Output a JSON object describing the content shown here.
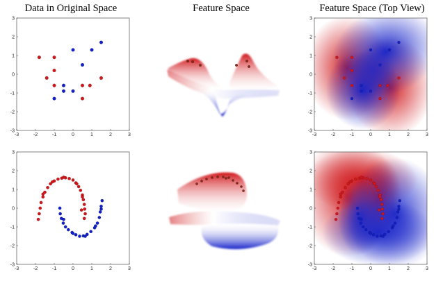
{
  "titles": {
    "original": "Data in Original Space",
    "feature": "Feature Space",
    "topview": "Feature Space (Top View)"
  },
  "colors": {
    "class_a": "#d0171b",
    "class_b": "#1320c8",
    "background": "#ffffff"
  },
  "chart_data": [
    {
      "type": "scatter",
      "title": "Data in Original Space",
      "xlim": [
        -3,
        3
      ],
      "ylim": [
        -3,
        3
      ],
      "xticks": [
        "-3",
        "-2",
        "-1",
        "0",
        "1",
        "2",
        "3"
      ],
      "yticks": [
        "-3",
        "-2",
        "-1",
        "0",
        "1",
        "2",
        "3"
      ],
      "grid": false,
      "series": [
        {
          "color": "#d0171b",
          "points": [
            [
              -1.8,
              0.9
            ],
            [
              -1.0,
              0.9
            ],
            [
              -1.0,
              0.2
            ],
            [
              -1.4,
              -0.2
            ],
            [
              -1.0,
              -0.6
            ],
            [
              0.5,
              -0.6
            ],
            [
              0.9,
              -0.6
            ],
            [
              0.5,
              -1.3
            ],
            [
              1.5,
              -0.2
            ]
          ]
        },
        {
          "color": "#1320c8",
          "points": [
            [
              0.0,
              1.3
            ],
            [
              1.0,
              1.3
            ],
            [
              1.5,
              1.7
            ],
            [
              0.5,
              0.5
            ],
            [
              -0.5,
              -0.6
            ],
            [
              -0.5,
              -0.9
            ],
            [
              0.0,
              -0.9
            ],
            [
              -1.0,
              -1.3
            ]
          ]
        }
      ]
    },
    {
      "type": "scatter",
      "title": "",
      "xlim": [
        -3,
        3
      ],
      "ylim": [
        -3,
        3
      ],
      "xticks": [
        "-3",
        "-2",
        "-1",
        "0",
        "1",
        "2",
        "3"
      ],
      "yticks": [
        "-3",
        "-2",
        "-1",
        "0",
        "1",
        "2",
        "3"
      ],
      "grid": false,
      "series": [
        {
          "color": "#d0171b",
          "points": [
            [
              -1.85,
              -0.6
            ],
            [
              -1.8,
              -0.3
            ],
            [
              -1.75,
              0.0
            ],
            [
              -1.7,
              0.3
            ],
            [
              -1.6,
              0.6
            ],
            [
              -1.5,
              0.85
            ],
            [
              -1.35,
              1.1
            ],
            [
              -1.2,
              1.3
            ],
            [
              -1.0,
              1.45
            ],
            [
              -0.8,
              1.55
            ],
            [
              -0.6,
              1.6
            ],
            [
              -0.4,
              1.62
            ],
            [
              -0.2,
              1.58
            ],
            [
              0.0,
              1.5
            ],
            [
              0.15,
              1.35
            ],
            [
              0.3,
              1.15
            ],
            [
              0.4,
              0.95
            ],
            [
              0.5,
              0.7
            ],
            [
              0.55,
              0.45
            ],
            [
              0.6,
              0.2
            ],
            [
              0.62,
              -0.05
            ],
            [
              0.65,
              -0.3
            ],
            [
              0.6,
              -0.55
            ],
            [
              -1.6,
              0.75
            ],
            [
              -1.1,
              1.4
            ],
            [
              -0.5,
              1.65
            ],
            [
              0.2,
              1.3
            ],
            [
              0.5,
              0.6
            ],
            [
              0.45,
              -0.1
            ]
          ]
        },
        {
          "color": "#1320c8",
          "points": [
            [
              -0.7,
              0.0
            ],
            [
              -0.68,
              -0.3
            ],
            [
              -0.62,
              -0.55
            ],
            [
              -0.52,
              -0.8
            ],
            [
              -0.4,
              -1.0
            ],
            [
              -0.25,
              -1.15
            ],
            [
              -0.05,
              -1.3
            ],
            [
              0.15,
              -1.42
            ],
            [
              0.35,
              -1.5
            ],
            [
              0.55,
              -1.48
            ],
            [
              0.75,
              -1.4
            ],
            [
              0.95,
              -1.25
            ],
            [
              1.15,
              -1.05
            ],
            [
              1.3,
              -0.8
            ],
            [
              1.4,
              -0.5
            ],
            [
              1.45,
              -0.2
            ],
            [
              1.5,
              0.1
            ],
            [
              1.55,
              0.4
            ],
            [
              -0.5,
              -0.6
            ],
            [
              0.0,
              -1.35
            ],
            [
              0.65,
              -1.5
            ],
            [
              1.2,
              -0.95
            ],
            [
              1.5,
              -0.05
            ]
          ]
        }
      ]
    },
    {
      "type": "heatmap",
      "title": "Feature Space (Top View)",
      "xlim": [
        -3,
        3
      ],
      "ylim": [
        -3,
        3
      ],
      "xticks": [
        "-3",
        "-2",
        "-1",
        "0",
        "1",
        "2",
        "3"
      ],
      "yticks": [
        "-3",
        "-2",
        "-1",
        "0",
        "1",
        "2",
        "3"
      ],
      "note_colormap": "red positive, blue negative, white zero",
      "overlay": "same points as Data in Original Space (row 1)"
    },
    {
      "type": "heatmap",
      "title": "",
      "xlim": [
        -3,
        3
      ],
      "ylim": [
        -3,
        3
      ],
      "xticks": [
        "-3",
        "-2",
        "-1",
        "0",
        "1",
        "2",
        "3"
      ],
      "yticks": [
        "-3",
        "-2",
        "-1",
        "0",
        "1",
        "2",
        "3"
      ],
      "overlay": "same points as row 2 scatter"
    }
  ]
}
